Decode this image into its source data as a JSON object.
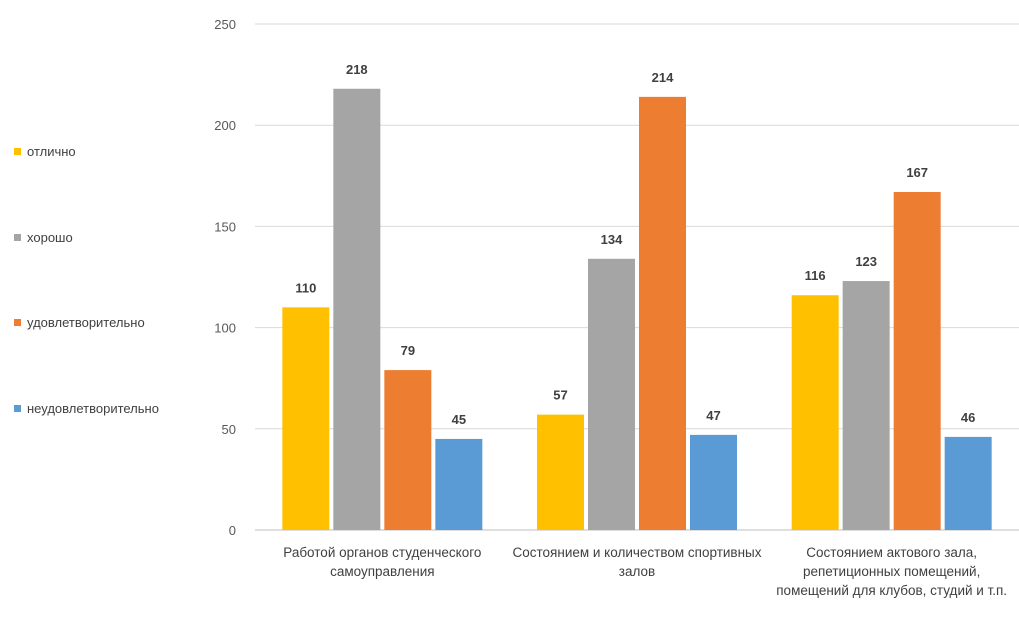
{
  "chart_data": {
    "type": "bar",
    "title": "",
    "xlabel": "",
    "ylabel": "",
    "categories": [
      "Работой органов студенческого самоуправления",
      "Состоянием и количеством спортивных залов",
      "Состоянием актового зала, репетиционных помещений, помещений для клубов, студий и т.п."
    ],
    "series": [
      {
        "name": "отлично",
        "values": [
          110,
          57,
          116
        ],
        "color": "#FFC000"
      },
      {
        "name": "хорошо",
        "values": [
          218,
          134,
          123
        ],
        "color": "#A5A5A5"
      },
      {
        "name": "удовлетворительно",
        "values": [
          79,
          214,
          167
        ],
        "color": "#ED7D31"
      },
      {
        "name": "неудовлетворительно",
        "values": [
          45,
          47,
          46
        ],
        "color": "#5B9BD5"
      }
    ],
    "ylim": [
      0,
      250
    ],
    "yticks": [
      0,
      50,
      100,
      150,
      200,
      250
    ],
    "grid": true,
    "legend_position": "left",
    "data_labels": true
  }
}
